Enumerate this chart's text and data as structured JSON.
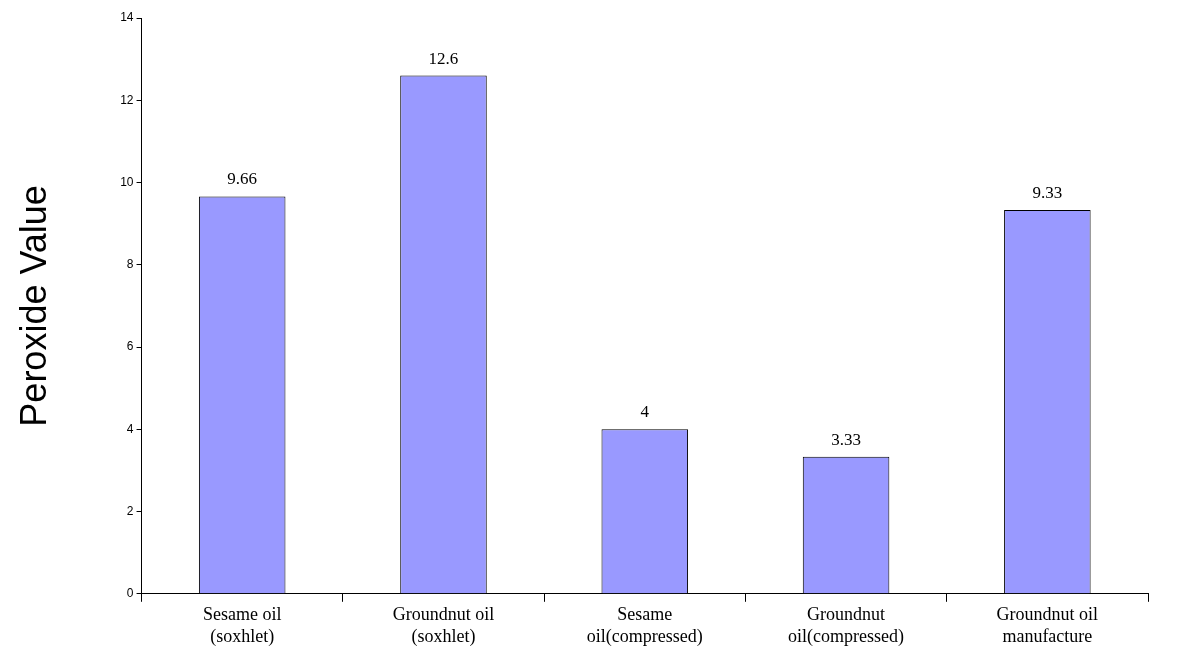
{
  "chart_data": {
    "type": "bar",
    "ylabel": "Peroxide Value",
    "categories": [
      "Sesame oil (soxhlet)",
      "Groundnut oil (soxhlet)",
      "Sesame oil(compressed)",
      "Groundnut oil(compressed)",
      "Groundnut oil manufacture"
    ],
    "values": [
      9.66,
      12.6,
      4,
      3.33,
      9.33
    ],
    "color": "#9999ff",
    "ylim": [
      0,
      14
    ],
    "yticks": [
      0,
      2,
      4,
      6,
      8,
      10,
      12,
      14
    ],
    "grid": false,
    "legend": false,
    "data_labels": true
  }
}
